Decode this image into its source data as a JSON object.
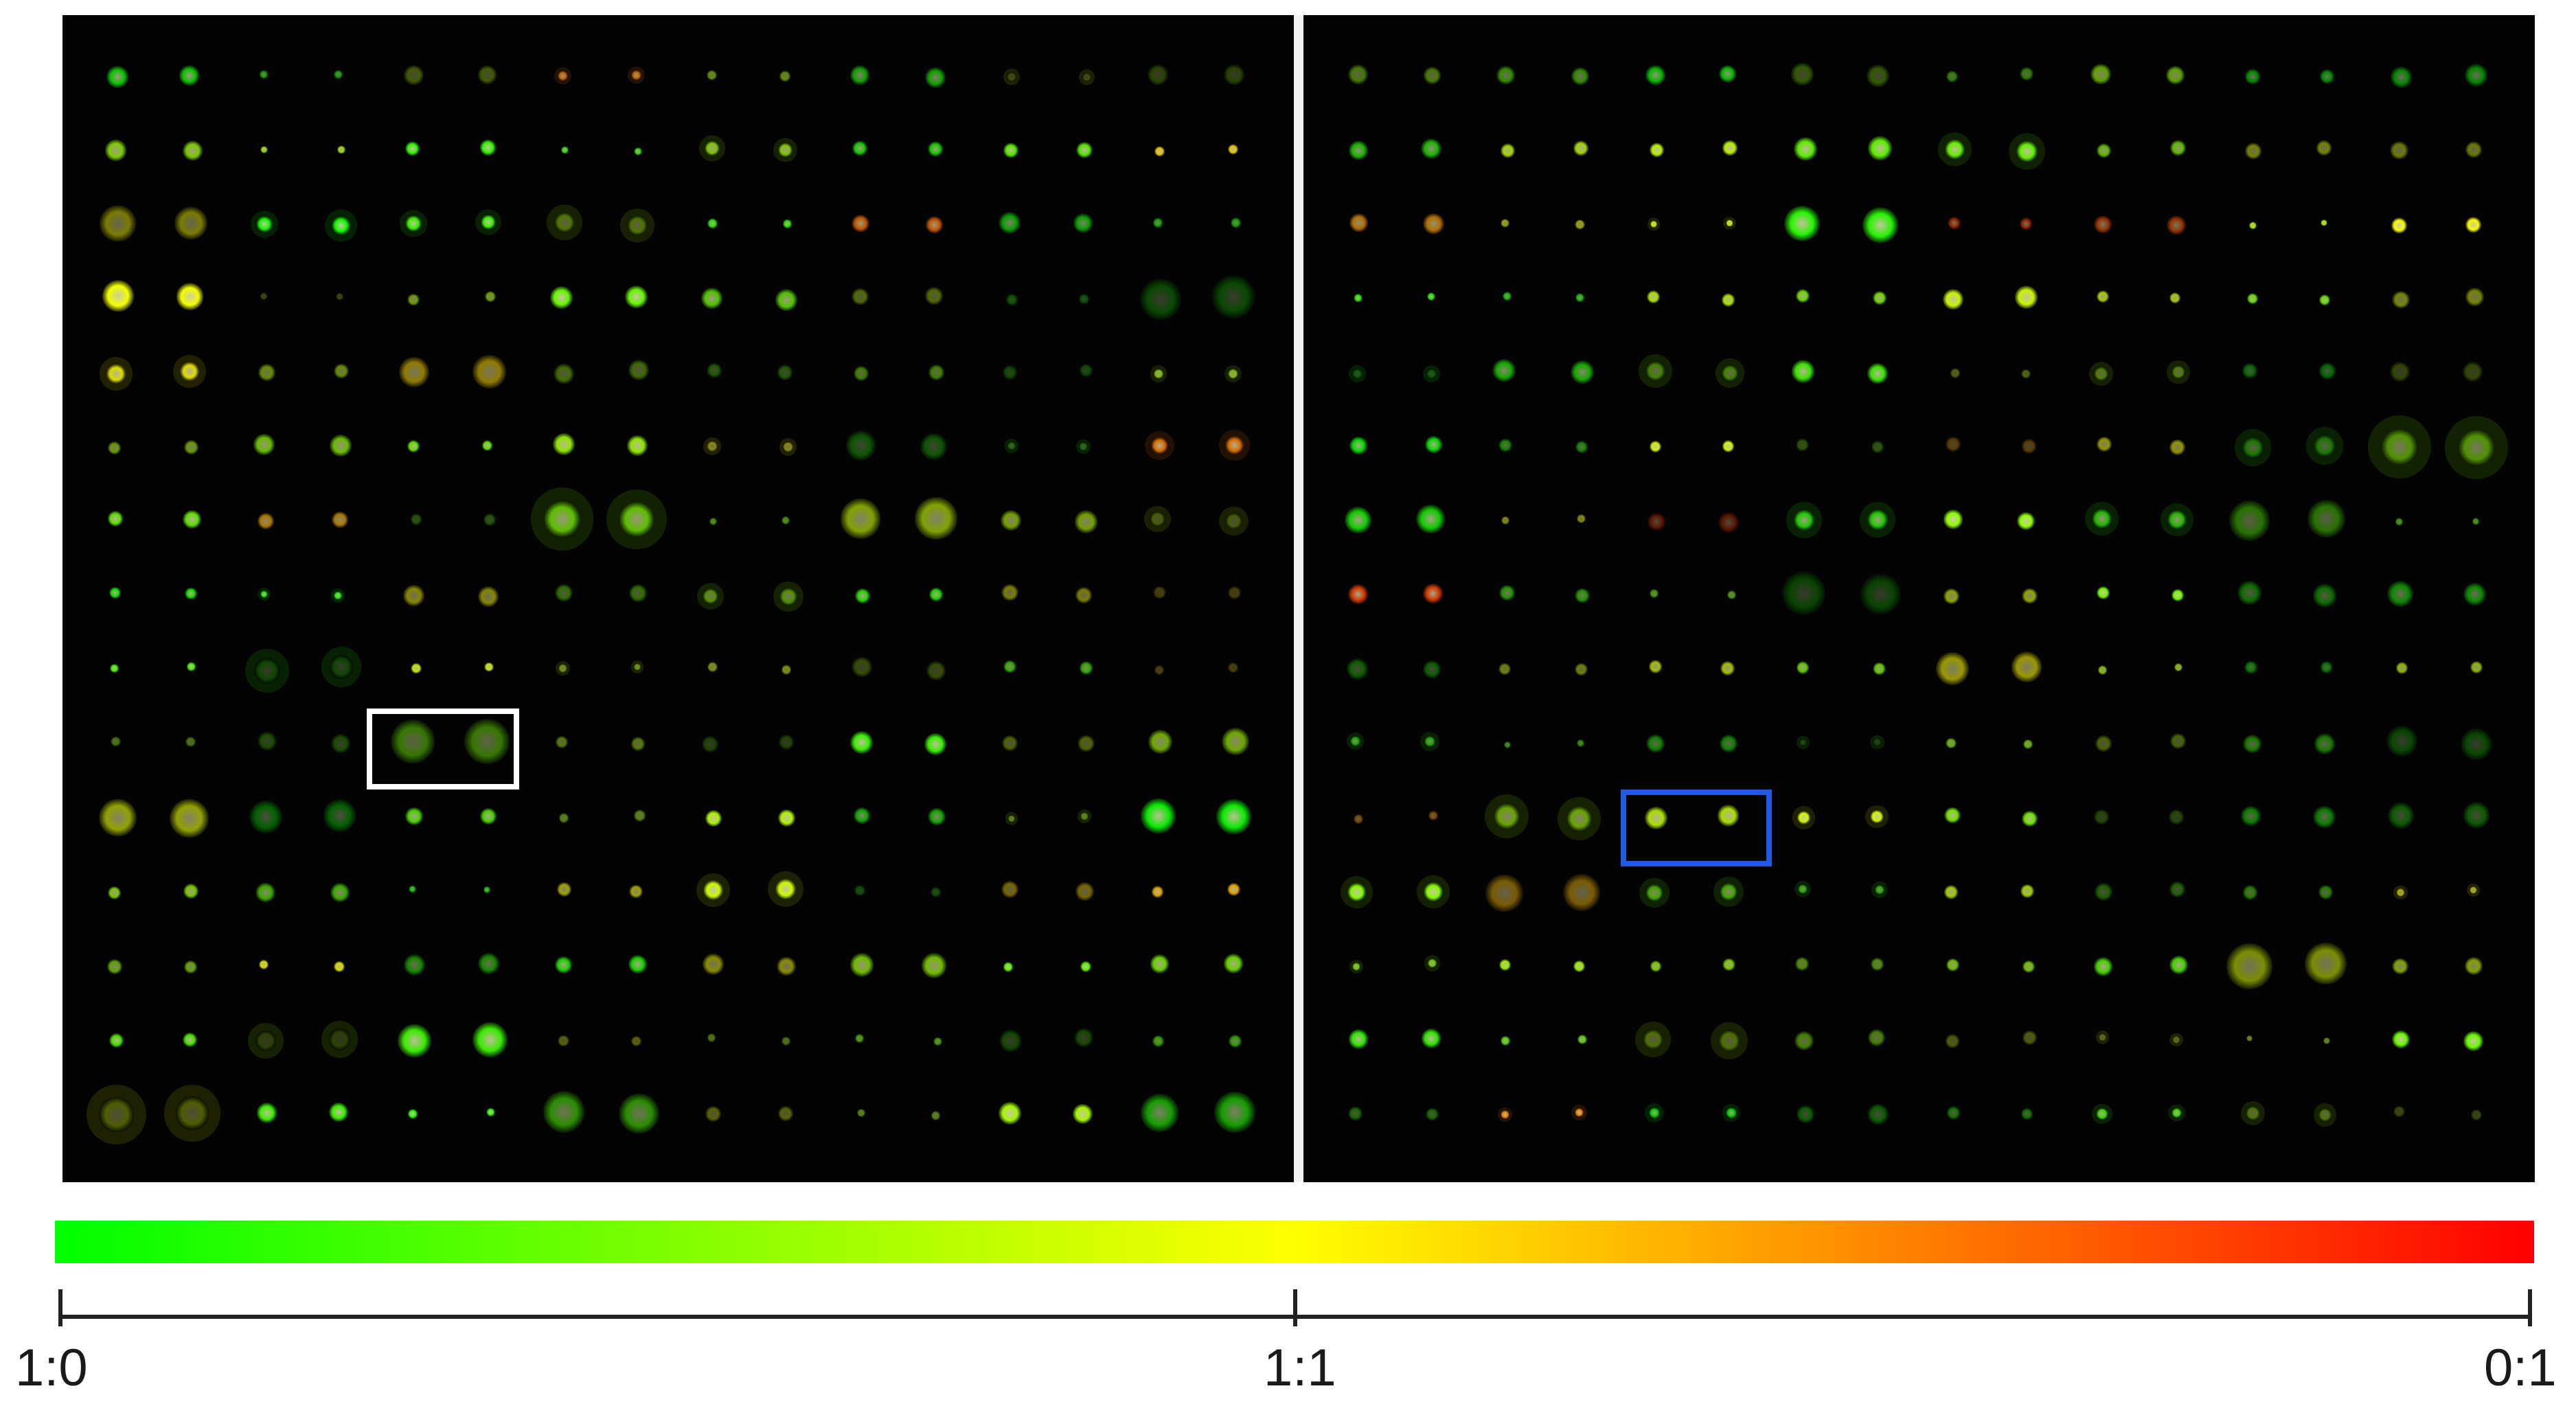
{
  "figure": {
    "panels": [
      "left-microarray",
      "right-microarray"
    ],
    "grid": {
      "rows": 15,
      "columns": 16
    },
    "highlight_colors": {
      "left_box": "#ffffff",
      "right_box": "#1f5ae0"
    }
  },
  "colorbar": {
    "gradient": [
      "#00ff00",
      "#ffff00",
      "#ff0000"
    ],
    "ticks": [
      "1:0",
      "1:1",
      "0:1"
    ]
  }
}
